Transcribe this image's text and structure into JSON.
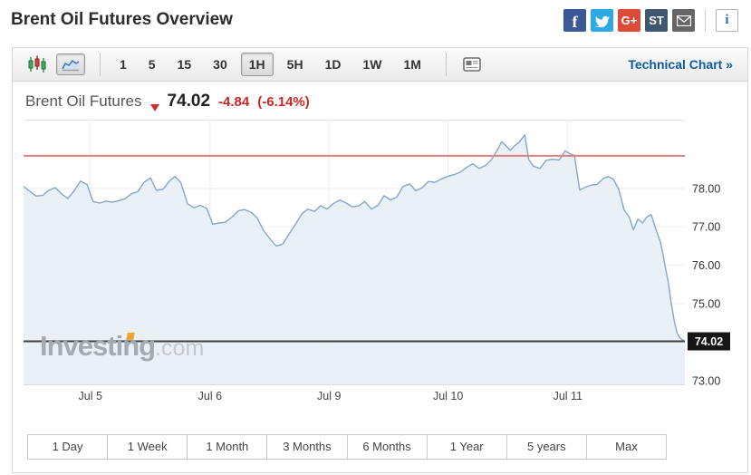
{
  "header": {
    "title": "Brent Oil Futures Overview",
    "info_label": "i",
    "social_icons": [
      {
        "name": "facebook-icon",
        "glyph": "f",
        "color": "#3b5998"
      },
      {
        "name": "twitter-icon",
        "glyph": "bird",
        "color": "#2caae1"
      },
      {
        "name": "googleplus-icon",
        "glyph": "G+",
        "color": "#dd4b39"
      },
      {
        "name": "stocktwits-icon",
        "glyph": "ST",
        "color": "#3f5771"
      },
      {
        "name": "email-icon",
        "glyph": "envelope",
        "color": "#666666"
      }
    ]
  },
  "toolbar": {
    "intervals": [
      {
        "label": "1"
      },
      {
        "label": "5"
      },
      {
        "label": "15"
      },
      {
        "label": "30"
      },
      {
        "label": "1H",
        "selected": true
      },
      {
        "label": "5H"
      },
      {
        "label": "1D"
      },
      {
        "label": "1W"
      },
      {
        "label": "1M"
      }
    ],
    "technical_chart_label": "Technical Chart »"
  },
  "quote": {
    "name": "Brent Oil Futures",
    "last": "74.02",
    "change": "-4.84",
    "change_percent": "(-6.14%)"
  },
  "watermark": {
    "main": "Investing",
    "suffix": ".com"
  },
  "range_buttons": [
    {
      "label": "1 Day"
    },
    {
      "label": "1 Week"
    },
    {
      "label": "1 Month"
    },
    {
      "label": "3 Months"
    },
    {
      "label": "6 Months"
    },
    {
      "label": "1 Year"
    },
    {
      "label": "5 years"
    },
    {
      "label": "Max"
    }
  ],
  "chart_data": {
    "type": "area",
    "title": "Brent Oil Futures (1H)",
    "last_price": 74.02,
    "last_price_label": "74.02",
    "prev_level_line": 78.85,
    "y_range": [
      72.9,
      79.79
    ],
    "y_grid": [
      78,
      77,
      76,
      75,
      74,
      73
    ],
    "y_tick_labels": [
      78,
      77,
      76,
      75,
      73
    ],
    "x_ticks": [
      {
        "label": "Jul 5",
        "f": 0.101
      },
      {
        "label": "Jul 6",
        "f": 0.282
      },
      {
        "label": "Jul 9",
        "f": 0.462
      },
      {
        "label": "Jul 10",
        "f": 0.642
      },
      {
        "label": "Jul 11",
        "f": 0.823
      }
    ],
    "colors": {
      "line": "#84a7cb",
      "fill": "#e7eef5",
      "grid": "#ededef",
      "prev_level": "#dd8181",
      "last_line": "#3f3f3f",
      "badge_bg": "#161616",
      "badge_text": "#ffffff",
      "axis_text": "#333333"
    },
    "points": [
      [
        0,
        78.05
      ],
      [
        0.01,
        77.92
      ],
      [
        0.019,
        77.8
      ],
      [
        0.029,
        77.82
      ],
      [
        0.038,
        77.95
      ],
      [
        0.048,
        78.02
      ],
      [
        0.058,
        77.85
      ],
      [
        0.067,
        77.74
      ],
      [
        0.077,
        77.95
      ],
      [
        0.086,
        78.19
      ],
      [
        0.096,
        78.1
      ],
      [
        0.105,
        77.66
      ],
      [
        0.115,
        77.62
      ],
      [
        0.125,
        77.67
      ],
      [
        0.134,
        77.64
      ],
      [
        0.144,
        77.68
      ],
      [
        0.153,
        77.73
      ],
      [
        0.163,
        77.86
      ],
      [
        0.173,
        77.92
      ],
      [
        0.182,
        78.16
      ],
      [
        0.192,
        78.27
      ],
      [
        0.201,
        77.95
      ],
      [
        0.211,
        77.98
      ],
      [
        0.221,
        78.2
      ],
      [
        0.229,
        78.31
      ],
      [
        0.238,
        78.15
      ],
      [
        0.248,
        77.6
      ],
      [
        0.258,
        77.5
      ],
      [
        0.267,
        77.56
      ],
      [
        0.277,
        77.48
      ],
      [
        0.286,
        77.07
      ],
      [
        0.296,
        77.1
      ],
      [
        0.305,
        77.12
      ],
      [
        0.315,
        77.25
      ],
      [
        0.325,
        77.42
      ],
      [
        0.334,
        77.45
      ],
      [
        0.344,
        77.38
      ],
      [
        0.353,
        77.24
      ],
      [
        0.363,
        76.9
      ],
      [
        0.373,
        76.68
      ],
      [
        0.382,
        76.5
      ],
      [
        0.392,
        76.55
      ],
      [
        0.401,
        76.8
      ],
      [
        0.411,
        77.06
      ],
      [
        0.421,
        77.34
      ],
      [
        0.43,
        77.46
      ],
      [
        0.44,
        77.4
      ],
      [
        0.449,
        77.55
      ],
      [
        0.459,
        77.46
      ],
      [
        0.468,
        77.6
      ],
      [
        0.478,
        77.7
      ],
      [
        0.488,
        77.62
      ],
      [
        0.497,
        77.52
      ],
      [
        0.507,
        77.55
      ],
      [
        0.516,
        77.66
      ],
      [
        0.526,
        77.46
      ],
      [
        0.536,
        77.56
      ],
      [
        0.545,
        77.81
      ],
      [
        0.555,
        77.7
      ],
      [
        0.564,
        77.77
      ],
      [
        0.574,
        78.05
      ],
      [
        0.584,
        78.12
      ],
      [
        0.593,
        77.94
      ],
      [
        0.603,
        78.02
      ],
      [
        0.612,
        78.18
      ],
      [
        0.622,
        78.16
      ],
      [
        0.632,
        78.25
      ],
      [
        0.641,
        78.31
      ],
      [
        0.651,
        78.36
      ],
      [
        0.66,
        78.42
      ],
      [
        0.67,
        78.55
      ],
      [
        0.679,
        78.64
      ],
      [
        0.689,
        78.52
      ],
      [
        0.699,
        78.6
      ],
      [
        0.708,
        78.76
      ],
      [
        0.718,
        79.05
      ],
      [
        0.723,
        79.22
      ],
      [
        0.73,
        79.1
      ],
      [
        0.736,
        78.99
      ],
      [
        0.742,
        79.1
      ],
      [
        0.749,
        79.2
      ],
      [
        0.758,
        79.39
      ],
      [
        0.764,
        78.75
      ],
      [
        0.771,
        78.58
      ],
      [
        0.781,
        78.52
      ],
      [
        0.79,
        78.73
      ],
      [
        0.8,
        78.76
      ],
      [
        0.81,
        78.74
      ],
      [
        0.819,
        78.98
      ],
      [
        0.826,
        78.9
      ],
      [
        0.833,
        78.86
      ],
      [
        0.837,
        78.4
      ],
      [
        0.841,
        77.96
      ],
      [
        0.849,
        78.03
      ],
      [
        0.859,
        78.09
      ],
      [
        0.867,
        78.1
      ],
      [
        0.877,
        78.26
      ],
      [
        0.884,
        78.31
      ],
      [
        0.892,
        78.24
      ],
      [
        0.9,
        77.98
      ],
      [
        0.908,
        77.45
      ],
      [
        0.916,
        77.25
      ],
      [
        0.922,
        76.92
      ],
      [
        0.929,
        77.2
      ],
      [
        0.936,
        77.1
      ],
      [
        0.942,
        77.25
      ],
      [
        0.949,
        77.32
      ],
      [
        0.956,
        76.95
      ],
      [
        0.963,
        76.6
      ],
      [
        0.967,
        76.28
      ],
      [
        0.971,
        75.9
      ],
      [
        0.975,
        75.55
      ],
      [
        0.979,
        75.05
      ],
      [
        0.984,
        74.55
      ],
      [
        0.988,
        74.25
      ],
      [
        0.992,
        74.12
      ],
      [
        0.996,
        74.06
      ],
      [
        1,
        74.02
      ]
    ]
  }
}
